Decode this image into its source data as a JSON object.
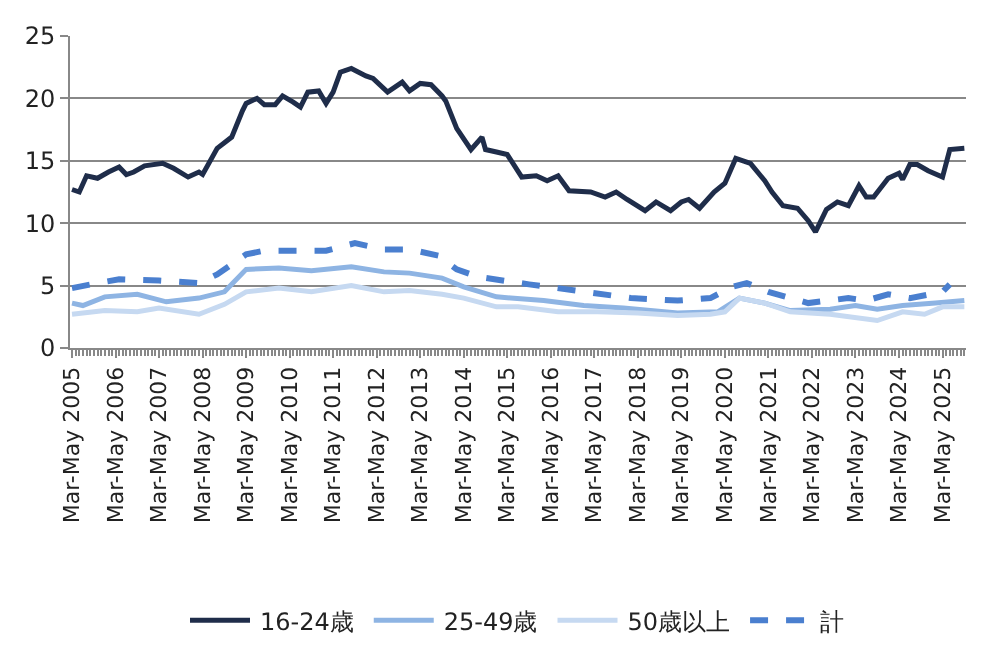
{
  "chart_data": {
    "type": "line",
    "xlim": [
      "2005-03-15",
      "2025-10-15"
    ],
    "xticks": [
      {
        "value": "2005-04",
        "label": "Mar-May 2005"
      },
      {
        "value": "2006-04",
        "label": "Mar-May 2006"
      },
      {
        "value": "2007-04",
        "label": "Mar-May 2007"
      },
      {
        "value": "2008-04",
        "label": "Mar-May 2008"
      },
      {
        "value": "2009-04",
        "label": "Mar-May 2009"
      },
      {
        "value": "2010-04",
        "label": "Mar-May 2010"
      },
      {
        "value": "2011-04",
        "label": "Mar-May 2011"
      },
      {
        "value": "2012-04",
        "label": "Mar-May 2012"
      },
      {
        "value": "2013-04",
        "label": "Mar-May 2013"
      },
      {
        "value": "2014-04",
        "label": "Mar-May 2014"
      },
      {
        "value": "2015-04",
        "label": "Mar-May 2015"
      },
      {
        "value": "2016-04",
        "label": "Mar-May 2016"
      },
      {
        "value": "2017-04",
        "label": "Mar-May 2017"
      },
      {
        "value": "2018-04",
        "label": "Mar-May 2018"
      },
      {
        "value": "2019-04",
        "label": "Mar-May 2019"
      },
      {
        "value": "2020-04",
        "label": "Mar-May 2020"
      },
      {
        "value": "2021-04",
        "label": "Mar-May 2021"
      },
      {
        "value": "2022-04",
        "label": "Mar-May 2022"
      },
      {
        "value": "2023-04",
        "label": "Mar-May 2023"
      },
      {
        "value": "2024-04",
        "label": "Mar-May 2024"
      },
      {
        "value": "2025-04",
        "label": "Mar-May 2025"
      }
    ],
    "ylim": [
      0,
      25
    ],
    "yticks": [
      0,
      5,
      10,
      15,
      20,
      25
    ],
    "grid": "y",
    "legend": "bottom",
    "marker": "none",
    "series": [
      {
        "name": "16-24歳",
        "color": "#1f2d4a",
        "line_style": "solid",
        "x": [
          "2005-04",
          "2005-06",
          "2005-08",
          "2005-11",
          "2006-02",
          "2006-05",
          "2006-07",
          "2006-09",
          "2006-12",
          "2007-05",
          "2007-08",
          "2007-12",
          "2008-03",
          "2008-04",
          "2008-08",
          "2008-12",
          "2009-03",
          "2009-04",
          "2009-07",
          "2009-09",
          "2009-12",
          "2010-02",
          "2010-05",
          "2010-07",
          "2010-09",
          "2010-12",
          "2011-02",
          "2011-04",
          "2011-06",
          "2011-09",
          "2012-01",
          "2012-03",
          "2012-07",
          "2012-11",
          "2013-01",
          "2013-04",
          "2013-07",
          "2013-10",
          "2013-11",
          "2014-02",
          "2014-06",
          "2014-09",
          "2014-10",
          "2015-01",
          "2015-04",
          "2015-08",
          "2015-12",
          "2016-03",
          "2016-06",
          "2016-09",
          "2017-03",
          "2017-07",
          "2017-10",
          "2018-01",
          "2018-06",
          "2018-09",
          "2019-01",
          "2019-04",
          "2019-06",
          "2019-09",
          "2020-01",
          "2020-04",
          "2020-07",
          "2020-11",
          "2021-03",
          "2021-05",
          "2021-08",
          "2021-12",
          "2022-03",
          "2022-05",
          "2022-08",
          "2022-11",
          "2023-02",
          "2023-05",
          "2023-07",
          "2023-09",
          "2024-01",
          "2024-04",
          "2024-05",
          "2024-07",
          "2024-09",
          "2024-12",
          "2025-04",
          "2025-06",
          "2025-10"
        ],
        "values": [
          12.7,
          12.5,
          13.8,
          13.6,
          14.1,
          14.5,
          13.9,
          14.1,
          14.6,
          14.8,
          14.4,
          13.7,
          14.1,
          13.9,
          16.0,
          16.9,
          19.0,
          19.6,
          20.0,
          19.5,
          19.5,
          20.2,
          19.7,
          19.3,
          20.5,
          20.6,
          19.6,
          20.5,
          22.1,
          22.4,
          21.8,
          21.6,
          20.5,
          21.3,
          20.6,
          21.2,
          21.1,
          20.2,
          19.8,
          17.6,
          15.9,
          16.9,
          15.9,
          15.7,
          15.5,
          13.7,
          13.8,
          13.4,
          13.8,
          12.6,
          12.5,
          12.1,
          12.5,
          11.9,
          11.0,
          11.7,
          11.0,
          11.7,
          11.9,
          11.2,
          12.5,
          13.2,
          15.2,
          14.8,
          13.4,
          12.5,
          11.4,
          11.2,
          10.2,
          9.3,
          11.1,
          11.7,
          11.4,
          13.0,
          12.1,
          12.1,
          13.6,
          14.0,
          13.5,
          14.7,
          14.7,
          14.2,
          13.7,
          15.9,
          16.0
        ]
      },
      {
        "name": "25-49歳",
        "color": "#8eb4e3",
        "line_style": "solid",
        "x": [
          "2005-04",
          "2005-07",
          "2006-01",
          "2006-10",
          "2007-06",
          "2008-03",
          "2008-10",
          "2009-04",
          "2010-01",
          "2010-10",
          "2011-09",
          "2012-06",
          "2013-01",
          "2013-10",
          "2014-04",
          "2015-01",
          "2015-05",
          "2016-02",
          "2017-01",
          "2017-12",
          "2019-03",
          "2020-02",
          "2020-08",
          "2021-03",
          "2021-10",
          "2022-09",
          "2023-04",
          "2023-10",
          "2024-05",
          "2025-02",
          "2025-10"
        ],
        "values": [
          3.6,
          3.4,
          4.1,
          4.3,
          3.7,
          4.0,
          4.5,
          6.3,
          6.4,
          6.2,
          6.5,
          6.1,
          6.0,
          5.6,
          4.9,
          4.1,
          4.0,
          3.8,
          3.4,
          3.2,
          2.8,
          2.9,
          4.0,
          3.6,
          3.0,
          3.1,
          3.4,
          3.1,
          3.4,
          3.6,
          3.8
        ]
      },
      {
        "name": "50歳以上",
        "color": "#c6d9f1",
        "line_style": "solid",
        "x": [
          "2005-04",
          "2006-01",
          "2006-10",
          "2007-04",
          "2008-03",
          "2008-10",
          "2009-04",
          "2010-01",
          "2010-10",
          "2011-09",
          "2012-06",
          "2013-01",
          "2013-10",
          "2014-04",
          "2015-01",
          "2015-07",
          "2016-06",
          "2017-05",
          "2018-04",
          "2019-03",
          "2019-12",
          "2020-04",
          "2020-08",
          "2021-03",
          "2021-10",
          "2022-09",
          "2023-10",
          "2024-05",
          "2024-11",
          "2025-04",
          "2025-10"
        ],
        "values": [
          2.7,
          3.0,
          2.9,
          3.2,
          2.7,
          3.5,
          4.5,
          4.8,
          4.5,
          5.0,
          4.5,
          4.6,
          4.3,
          4.0,
          3.3,
          3.3,
          2.9,
          2.9,
          2.8,
          2.6,
          2.7,
          2.9,
          4.0,
          3.6,
          2.9,
          2.7,
          2.2,
          2.9,
          2.7,
          3.3,
          3.3
        ]
      },
      {
        "name": "計",
        "color": "#4a7fcf",
        "line_style": "dashed",
        "x": [
          "2005-04",
          "2005-11",
          "2006-05",
          "2007-04",
          "2008-03",
          "2008-08",
          "2009-04",
          "2009-09",
          "2010-06",
          "2011-02",
          "2011-10",
          "2012-06",
          "2013-01",
          "2013-09",
          "2014-02",
          "2014-08",
          "2015-10",
          "2016-11",
          "2018-02",
          "2019-03",
          "2019-12",
          "2020-06",
          "2020-10",
          "2021-04",
          "2022-03",
          "2023-02",
          "2023-07",
          "2024-01",
          "2024-07",
          "2025-04",
          "2025-06"
        ],
        "values": [
          4.8,
          5.2,
          5.5,
          5.4,
          5.2,
          5.9,
          7.5,
          7.8,
          7.8,
          7.8,
          8.4,
          7.9,
          7.9,
          7.4,
          6.3,
          5.7,
          5.1,
          4.6,
          4.0,
          3.8,
          4.0,
          4.9,
          5.2,
          4.5,
          3.6,
          4.0,
          3.8,
          4.3,
          4.0,
          4.5,
          5.1
        ]
      }
    ]
  }
}
